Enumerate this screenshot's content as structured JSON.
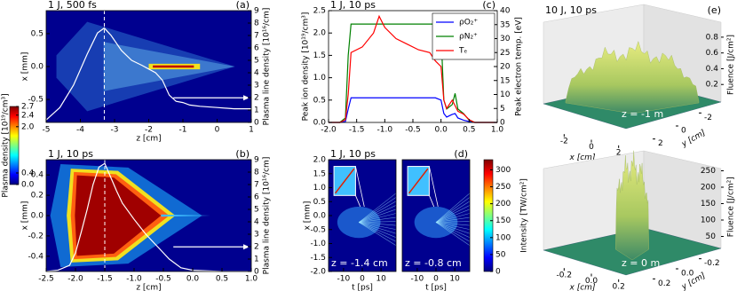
{
  "chart_data": [
    {
      "type": "heatmap",
      "title": "1 J, 500 fs",
      "label": "(a)",
      "x_label": "z [cm]",
      "y_label": "x [mm]",
      "y2_label": "Plasma line density [10¹⁶/cm]",
      "xlim": [
        -5,
        1
      ],
      "xticks": [
        -5,
        -4,
        -3,
        -2,
        -1,
        0,
        1
      ],
      "ylim": [
        -0.85,
        0.85
      ],
      "yticks": [
        {
          "value": -0.5,
          "label": "-0.5"
        },
        {
          "value": 0,
          "label": "0.0"
        },
        {
          "value": 0.5,
          "label": "0.5"
        }
      ],
      "y2lim": [
        0,
        9
      ],
      "y2ticks": [
        0,
        1,
        2,
        3,
        4,
        5,
        6,
        7,
        8,
        9
      ],
      "x": [
        -5,
        -4.6,
        -4.2,
        -3.8,
        -3.5,
        -3.3,
        -3.1,
        -2.8,
        -2.5,
        -2.2,
        -2.0,
        -1.8,
        -1.6,
        -1.4,
        -1.2,
        -1.0,
        -0.8,
        -0.5,
        0,
        0.5,
        1
      ],
      "series": [
        {
          "color": "#ffffff",
          "axis": "y2",
          "values": [
            0.2,
            1.2,
            3.0,
            5.5,
            7.2,
            7.6,
            7.0,
            5.8,
            5.0,
            4.6,
            4.3,
            4.0,
            3.4,
            2.2,
            1.7,
            1.6,
            1.4,
            1.3,
            1.2,
            1.1,
            1.1
          ]
        }
      ],
      "vline": -3.3
    },
    {
      "type": "heatmap",
      "title": "1 J, 10 ps",
      "label": "(b)",
      "x_label": "z [cm]",
      "y_label": "x [mm]",
      "y2_label": "Plasma line density [10¹⁶/cm]",
      "xlim": [
        -2.5,
        1
      ],
      "xticks": [
        {
          "value": -2.5,
          "label": "-2.5"
        },
        {
          "value": -2,
          "label": "-2.0"
        },
        {
          "value": -1.5,
          "label": "-1.5"
        },
        {
          "value": -1,
          "label": "-1.0"
        },
        {
          "value": -0.5,
          "label": "-0.5"
        },
        {
          "value": 0,
          "label": "0.0"
        },
        {
          "value": 0.5,
          "label": "0.5"
        },
        {
          "value": 1,
          "label": "1.0"
        }
      ],
      "ylim": [
        -0.55,
        0.55
      ],
      "yticks": [
        {
          "value": -0.4,
          "label": "-0.4"
        },
        {
          "value": -0.2,
          "label": "-0.2"
        },
        {
          "value": 0,
          "label": "0.0"
        },
        {
          "value": 0.2,
          "label": "0.2"
        },
        {
          "value": 0.4,
          "label": "0.4"
        }
      ],
      "y2lim": [
        0,
        9
      ],
      "y2ticks": [
        0,
        1,
        2,
        3,
        4,
        5,
        6,
        7,
        8,
        9
      ],
      "x": [
        -2.5,
        -2.3,
        -2.1,
        -2.0,
        -1.9,
        -1.8,
        -1.7,
        -1.6,
        -1.5,
        -1.4,
        -1.3,
        -1.2,
        -1.0,
        -0.8,
        -0.6,
        -0.4,
        -0.2,
        0,
        0.5,
        1
      ],
      "series": [
        {
          "color": "#ffffff",
          "axis": "y2",
          "values": [
            0,
            0.1,
            0.5,
            1.5,
            3.2,
            5.0,
            7.0,
            8.4,
            8.7,
            7.6,
            6.5,
            5.5,
            4.2,
            3.0,
            2.0,
            1.0,
            0.3,
            0.1,
            0,
            0
          ]
        }
      ],
      "vline": -1.5
    },
    {
      "type": "colorbar",
      "y_label": "Plasma density [10¹⁹/cm³]",
      "colormap": "jet",
      "ylim": [
        0,
        2.7
      ],
      "yticks": [
        {
          "value": 0,
          "label": "0.0"
        },
        {
          "value": 0.4,
          "label": "0.4"
        },
        {
          "value": 2,
          "label": "2.0"
        },
        {
          "value": 2.4,
          "label": "2.4"
        },
        {
          "value": 2.7,
          "label": "2.7"
        }
      ]
    },
    {
      "type": "line",
      "title": "1 J, 10 ps",
      "label": "(c)",
      "y_label": "Peak ion density [10¹⁹/cm³]",
      "y2_label": "Peak electron temp. [eV]",
      "legend": "upper right",
      "xlim": [
        -2,
        1
      ],
      "xticks": [
        {
          "value": -2,
          "label": "-2.0"
        },
        {
          "value": -1.5,
          "label": "-1.5"
        },
        {
          "value": -1,
          "label": "-1.0"
        },
        {
          "value": -0.5,
          "label": "-0.5"
        },
        {
          "value": 0,
          "label": "0.0"
        },
        {
          "value": 0.5,
          "label": "0.5"
        },
        {
          "value": 1,
          "label": "1.0"
        }
      ],
      "ylim": [
        0,
        2.5
      ],
      "yticks": [
        {
          "value": 0,
          "label": "0.0"
        },
        {
          "value": 0.5,
          "label": "0.5"
        },
        {
          "value": 1,
          "label": "1.0"
        },
        {
          "value": 1.5,
          "label": "1.5"
        },
        {
          "value": 2,
          "label": "2.0"
        },
        {
          "value": 2.5,
          "label": "2.5"
        }
      ],
      "y2lim": [
        0,
        40
      ],
      "y2ticks": [
        0,
        5,
        10,
        15,
        20,
        25,
        30,
        35,
        40
      ],
      "x": [
        -2.0,
        -1.8,
        -1.7,
        -1.65,
        -1.6,
        -1.4,
        -1.2,
        -1.1,
        -1.0,
        -0.8,
        -0.6,
        -0.4,
        -0.2,
        -0.1,
        0.0,
        0.05,
        0.1,
        0.2,
        0.25,
        0.3,
        0.4,
        0.5,
        0.6,
        0.8,
        1.0
      ],
      "series": [
        {
          "name": "ρO₂⁺",
          "color": "#0000ff",
          "values": [
            0,
            0,
            0.02,
            0.3,
            0.55,
            0.55,
            0.55,
            0.55,
            0.55,
            0.55,
            0.55,
            0.55,
            0.55,
            0.55,
            0.5,
            0.2,
            0.12,
            0.18,
            0.2,
            0.1,
            0.05,
            0.02,
            0,
            0,
            0
          ]
        },
        {
          "name": "ρN₂⁺",
          "color": "#008000",
          "values": [
            0,
            0,
            0.1,
            1.5,
            2.2,
            2.2,
            2.2,
            2.2,
            2.2,
            2.2,
            2.2,
            2.2,
            2.2,
            2.2,
            2.0,
            0.5,
            0.3,
            0.4,
            0.65,
            0.3,
            0.2,
            0.05,
            0,
            0,
            0
          ]
        },
        {
          "name": "Tₑ",
          "color": "#ff0000",
          "axis": "y2",
          "values": [
            0,
            0,
            1,
            10,
            25,
            27,
            32,
            38,
            34,
            30,
            28,
            26,
            25,
            22,
            20,
            8,
            5,
            8,
            6,
            4,
            3,
            1,
            0,
            0,
            0
          ]
        }
      ]
    },
    {
      "type": "heatmap",
      "title": "1 J, 10 ps",
      "x_label": "t [ps]",
      "y_label": "x [mm]",
      "annotation": "z = -1.4 cm",
      "xlim": [
        -18,
        18
      ],
      "xticks": [
        -10,
        0,
        10
      ],
      "ylim": [
        -2,
        2
      ],
      "yticks": [
        {
          "value": -2,
          "label": "-2.0"
        },
        {
          "value": -1.5,
          "label": "-1.5"
        },
        {
          "value": -1,
          "label": "-1.0"
        },
        {
          "value": -0.5,
          "label": "-0.5"
        },
        {
          "value": 0,
          "label": "0.0"
        },
        {
          "value": 0.5,
          "label": "0.5"
        },
        {
          "value": 1,
          "label": "1.0"
        },
        {
          "value": 1.5,
          "label": "1.5"
        },
        {
          "value": 2,
          "label": "2.0"
        }
      ]
    },
    {
      "type": "heatmap",
      "label": "(d)",
      "x_label": "t [ps]",
      "annotation": "z = -0.8 cm",
      "xlim": [
        -18,
        18
      ],
      "xticks": [
        -10,
        0,
        10
      ],
      "ylim": [
        -2,
        2
      ]
    },
    {
      "type": "colorbar",
      "y_label": "Intensity [TW/cm²]",
      "colormap": "jet",
      "ylim": [
        0,
        330
      ],
      "yticks": [
        0,
        50,
        100,
        150,
        200,
        250,
        300
      ]
    },
    {
      "type": "surface3d",
      "title": "10 J, 10 ps",
      "label": "(e)",
      "x_label": "x [cm]",
      "y_label": "y [cm]",
      "z_label": "Fluence [J/cm²]",
      "annotation": "z = -1 m",
      "xlim": [
        -3,
        3
      ],
      "xticks": [
        -2,
        0,
        2
      ],
      "ylim": [
        -3,
        3
      ],
      "yticks": [
        -2,
        0,
        2
      ],
      "zlim": [
        0,
        0.9
      ],
      "zticks": [
        0.2,
        0.4,
        0.6,
        0.8
      ]
    },
    {
      "type": "surface3d",
      "x_label": "x [cm]",
      "y_label": "y [cm]",
      "z_label": "Fluence [J/cm²]",
      "annotation": "z = 0 m",
      "xlim": [
        -0.3,
        0.3
      ],
      "xticks": [
        {
          "value": -0.2,
          "label": "-0.2"
        },
        {
          "value": 0,
          "label": "0.0"
        },
        {
          "value": 0.2,
          "label": "0.2"
        }
      ],
      "ylim": [
        -0.3,
        0.3
      ],
      "yticks": [
        {
          "value": -0.2,
          "label": "-0.2"
        },
        {
          "value": 0,
          "label": "0.0"
        },
        {
          "value": 0.2,
          "label": "0.2"
        }
      ],
      "zlim": [
        0,
        280
      ],
      "zticks": [
        50,
        100,
        150,
        200,
        250
      ]
    }
  ]
}
